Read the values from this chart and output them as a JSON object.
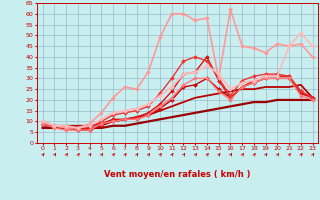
{
  "xlabel": "Vent moyen/en rafales ( km/h )",
  "xlim": [
    -0.5,
    23.5
  ],
  "ylim": [
    0,
    65
  ],
  "yticks": [
    0,
    5,
    10,
    15,
    20,
    25,
    30,
    35,
    40,
    45,
    50,
    55,
    60,
    65
  ],
  "xticks": [
    0,
    1,
    2,
    3,
    4,
    5,
    6,
    7,
    8,
    9,
    10,
    11,
    12,
    13,
    14,
    15,
    16,
    17,
    18,
    19,
    20,
    21,
    22,
    23
  ],
  "bg_color": "#c8eef0",
  "grid_color": "#99bbcc",
  "lines": [
    {
      "x": [
        0,
        1,
        2,
        3,
        4,
        5,
        6,
        7,
        8,
        9,
        10,
        11,
        12,
        13,
        14,
        15,
        16,
        17,
        18,
        19,
        20,
        21,
        22,
        23
      ],
      "y": [
        7,
        7,
        7,
        7,
        7,
        7,
        8,
        8,
        9,
        10,
        11,
        12,
        13,
        14,
        15,
        16,
        17,
        18,
        19,
        19,
        20,
        20,
        20,
        20
      ],
      "color": "#990000",
      "lw": 1.6,
      "marker": null,
      "ms": 0
    },
    {
      "x": [
        0,
        1,
        2,
        3,
        4,
        5,
        6,
        7,
        8,
        9,
        10,
        11,
        12,
        13,
        14,
        15,
        16,
        17,
        18,
        19,
        20,
        21,
        22,
        23
      ],
      "y": [
        8,
        8,
        8,
        8,
        8,
        9,
        10,
        11,
        12,
        13,
        15,
        17,
        19,
        21,
        22,
        23,
        24,
        25,
        25,
        26,
        26,
        26,
        27,
        21
      ],
      "color": "#bb0000",
      "lw": 1.3,
      "marker": null,
      "ms": 0
    },
    {
      "x": [
        0,
        1,
        2,
        3,
        4,
        5,
        6,
        7,
        8,
        9,
        10,
        11,
        12,
        13,
        14,
        15,
        16,
        17,
        18,
        19,
        20,
        21,
        22,
        23
      ],
      "y": [
        9,
        8,
        7,
        6,
        6,
        8,
        10,
        11,
        11,
        13,
        16,
        20,
        26,
        27,
        30,
        25,
        21,
        26,
        28,
        30,
        30,
        30,
        23,
        21
      ],
      "color": "#cc0000",
      "lw": 1.0,
      "marker": "D",
      "ms": 2
    },
    {
      "x": [
        0,
        1,
        2,
        3,
        4,
        5,
        6,
        7,
        8,
        9,
        10,
        11,
        12,
        13,
        14,
        15,
        16,
        17,
        18,
        19,
        20,
        21,
        22,
        23
      ],
      "y": [
        9,
        8,
        7,
        6,
        6,
        9,
        11,
        11,
        12,
        14,
        18,
        24,
        32,
        33,
        40,
        29,
        21,
        26,
        29,
        31,
        31,
        31,
        24,
        21
      ],
      "color": "#dd1111",
      "lw": 1.0,
      "marker": "D",
      "ms": 2
    },
    {
      "x": [
        0,
        1,
        2,
        3,
        4,
        5,
        6,
        7,
        8,
        9,
        10,
        11,
        12,
        13,
        14,
        15,
        16,
        17,
        18,
        19,
        20,
        21,
        22,
        23
      ],
      "y": [
        10,
        8,
        7,
        7,
        7,
        10,
        13,
        14,
        15,
        17,
        23,
        30,
        38,
        40,
        38,
        30,
        22,
        29,
        31,
        32,
        32,
        31,
        24,
        21
      ],
      "color": "#ee3333",
      "lw": 1.0,
      "marker": "D",
      "ms": 2
    },
    {
      "x": [
        0,
        1,
        2,
        3,
        4,
        5,
        6,
        7,
        8,
        9,
        10,
        11,
        12,
        13,
        14,
        15,
        16,
        17,
        18,
        19,
        20,
        21,
        22,
        23
      ],
      "y": [
        10,
        8,
        7,
        7,
        9,
        14,
        21,
        26,
        25,
        33,
        49,
        60,
        60,
        57,
        58,
        30,
        62,
        45,
        44,
        42,
        46,
        45,
        46,
        40
      ],
      "color": "#ff9999",
      "lw": 1.2,
      "marker": "D",
      "ms": 2
    },
    {
      "x": [
        0,
        1,
        2,
        3,
        4,
        5,
        6,
        7,
        8,
        9,
        10,
        11,
        12,
        13,
        14,
        15,
        16,
        17,
        18,
        19,
        20,
        21,
        22,
        23
      ],
      "y": [
        9,
        7,
        6,
        6,
        6,
        9,
        10,
        11,
        11,
        13,
        17,
        21,
        27,
        30,
        30,
        24,
        20,
        26,
        28,
        30,
        30,
        30,
        22,
        20
      ],
      "color": "#ff7777",
      "lw": 1.0,
      "marker": "D",
      "ms": 2
    },
    {
      "x": [
        0,
        1,
        2,
        3,
        4,
        5,
        6,
        7,
        8,
        9,
        10,
        11,
        12,
        13,
        14,
        15,
        16,
        17,
        18,
        19,
        20,
        21,
        22,
        23
      ],
      "y": [
        10,
        8,
        8,
        7,
        8,
        11,
        14,
        15,
        16,
        18,
        22,
        26,
        32,
        33,
        36,
        32,
        25,
        28,
        29,
        31,
        31,
        45,
        51,
        45
      ],
      "color": "#ffbbbb",
      "lw": 1.3,
      "marker": "D",
      "ms": 2
    }
  ],
  "arrow_color": "#cc0000",
  "xlabel_color": "#cc0000",
  "tick_color": "#cc0000"
}
